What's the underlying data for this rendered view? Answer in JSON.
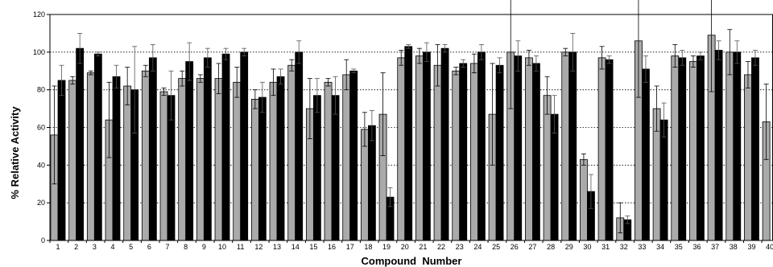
{
  "chart_data": {
    "type": "bar",
    "title": "",
    "xlabel": "Compound  Number",
    "ylabel": "% Relative Activity",
    "ylim": [
      0,
      120
    ],
    "yticks": [
      0,
      20,
      40,
      60,
      80,
      100,
      120
    ],
    "grid": "horizontal dotted",
    "legend": "none",
    "categories": [
      "1",
      "2",
      "3",
      "4",
      "5",
      "6",
      "7",
      "8",
      "9",
      "10",
      "11",
      "12",
      "13",
      "14",
      "15",
      "16",
      "17",
      "18",
      "19",
      "20",
      "21",
      "22",
      "23",
      "24",
      "25",
      "26",
      "27",
      "28",
      "29",
      "30",
      "31",
      "32",
      "33",
      "34",
      "35",
      "36",
      "37",
      "38",
      "39",
      "40"
    ],
    "series": [
      {
        "color": "#aaaaaa",
        "values": [
          56,
          85,
          89,
          64,
          82,
          90,
          79,
          86,
          86,
          86,
          84,
          75,
          84,
          93,
          70,
          84,
          88,
          59,
          67,
          97,
          98,
          93,
          90,
          94,
          67,
          100,
          97,
          77,
          100,
          43,
          97,
          12,
          106,
          70,
          98,
          95,
          109,
          100,
          88,
          63
        ],
        "errors": [
          26,
          2,
          1,
          20,
          10,
          3,
          2,
          4,
          2,
          8,
          8,
          5,
          7,
          3,
          16,
          2,
          8,
          9,
          22,
          4,
          4,
          11,
          2,
          5,
          27,
          30,
          4,
          10,
          2,
          3,
          6,
          8,
          30,
          12,
          6,
          3,
          30,
          12,
          7,
          20
        ]
      },
      {
        "color": "#000000",
        "values": [
          85,
          102,
          99,
          87,
          80,
          97,
          77,
          95,
          97,
          99,
          100,
          76,
          87,
          100,
          77,
          77,
          90,
          61,
          23,
          103,
          100,
          102,
          94,
          100,
          93,
          98,
          94,
          67,
          100,
          26,
          96,
          11,
          91,
          64,
          97,
          98,
          101,
          100,
          97,
          0
        ],
        "errors": [
          8,
          8,
          1,
          6,
          23,
          7,
          13,
          10,
          5,
          3,
          2,
          8,
          4,
          6,
          9,
          10,
          1,
          8,
          5,
          1,
          5,
          2,
          2,
          4,
          4,
          8,
          4,
          10,
          10,
          9,
          2,
          2,
          7,
          9,
          4,
          2,
          5,
          6,
          4,
          0
        ]
      }
    ]
  }
}
